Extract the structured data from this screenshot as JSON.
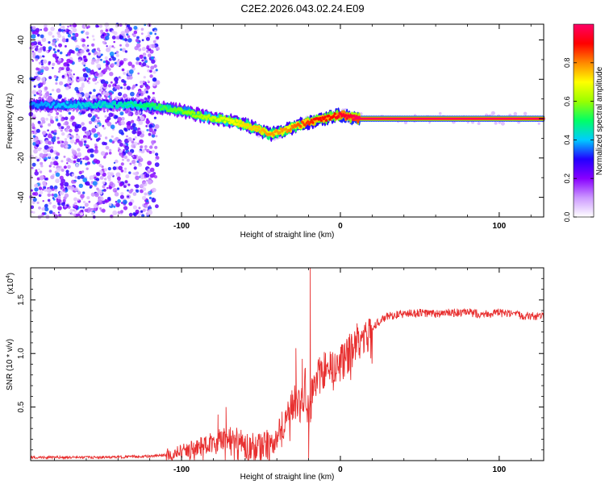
{
  "title": "C2E2.2026.043.02.24.E09",
  "chart_data": [
    {
      "type": "heatmap",
      "title": "C2E2.2026.043.02.24.E09",
      "xlabel": "Height of straight line (km)",
      "ylabel": "Frequency (Hz)",
      "xlim": [
        -195,
        128
      ],
      "ylim": [
        -50,
        48
      ],
      "x_ticks": [
        -100,
        0,
        100
      ],
      "x_tick_labels": [
        "-100",
        "0",
        "100"
      ],
      "y_ticks": [
        -40,
        -20,
        0,
        20,
        40
      ],
      "y_tick_labels": [
        "-40",
        "-20",
        "0",
        "20",
        "40"
      ],
      "colorbar": {
        "label": "Normalized spectral amplitude",
        "range": [
          0,
          1
        ],
        "ticks": [
          0.0,
          0.2,
          0.4,
          0.6,
          0.8
        ],
        "tick_labels": [
          "0.0",
          "0.2",
          "0.4",
          "0.6",
          "0.8"
        ],
        "colors": [
          "#ffffff",
          "#cc99ff",
          "#8800ff",
          "#2200ff",
          "#00ccff",
          "#00ff66",
          "#99ff00",
          "#ffff00",
          "#ff8800",
          "#ff0000",
          "#ff0066"
        ]
      },
      "ridge": {
        "x": [
          -195,
          -130,
          -115,
          -100,
          -85,
          -70,
          -60,
          -50,
          -45,
          -35,
          -25,
          -15,
          -5,
          0,
          5,
          10,
          128
        ],
        "y": [
          7,
          7,
          6,
          4,
          1,
          -1,
          -3,
          -6,
          -8,
          -6,
          -3,
          -1,
          1,
          2,
          1,
          0,
          0
        ],
        "amplitude": [
          0.35,
          0.45,
          0.5,
          0.55,
          0.6,
          0.65,
          0.7,
          0.72,
          0.75,
          0.75,
          0.8,
          0.85,
          0.85,
          0.9,
          0.9,
          0.95,
          0.95
        ]
      },
      "noise_region_x": [
        -195,
        -115
      ]
    },
    {
      "type": "line",
      "xlabel": "Height of straight line (km)",
      "ylabel": "SNR (10 * v/v)",
      "y_multiplier_label": "(x10",
      "y_multiplier_exp": "4",
      "xlim": [
        -195,
        128
      ],
      "ylim": [
        0,
        1.8
      ],
      "x_ticks": [
        -100,
        0,
        100
      ],
      "x_tick_labels": [
        "-100",
        "0",
        "100"
      ],
      "y_ticks": [
        0.5,
        1.0,
        1.5
      ],
      "y_tick_labels": [
        "0.5",
        "1.0",
        "1.5"
      ],
      "color": "#e83030",
      "series": [
        {
          "name": "SNR",
          "x": [
            -195,
            -150,
            -120,
            -110,
            -100,
            -90,
            -80,
            -70,
            -60,
            -50,
            -45,
            -40,
            -35,
            -30,
            -25,
            -22,
            -20,
            -18,
            -15,
            -10,
            -5,
            0,
            5,
            10,
            15,
            20,
            25,
            30,
            40,
            50,
            60,
            70,
            80,
            90,
            100,
            110,
            120,
            128
          ],
          "y": [
            0.03,
            0.03,
            0.04,
            0.05,
            0.08,
            0.12,
            0.18,
            0.22,
            0.15,
            0.12,
            0.15,
            0.25,
            0.35,
            0.55,
            0.5,
            0.7,
            0.4,
            0.6,
            0.75,
            0.85,
            0.85,
            0.9,
            1.0,
            1.1,
            1.15,
            1.25,
            1.3,
            1.35,
            1.37,
            1.38,
            1.37,
            1.38,
            1.38,
            1.37,
            1.38,
            1.36,
            1.35,
            1.34
          ]
        }
      ],
      "peak": {
        "x": -19,
        "y": 1.8
      },
      "spikes": [
        {
          "x": -20,
          "y": 0.02
        },
        {
          "x": -24,
          "y": 0.95
        },
        {
          "x": -28,
          "y": 1.05
        },
        {
          "x": -72,
          "y": 0.5
        },
        {
          "x": -77,
          "y": 0.43
        }
      ]
    }
  ]
}
